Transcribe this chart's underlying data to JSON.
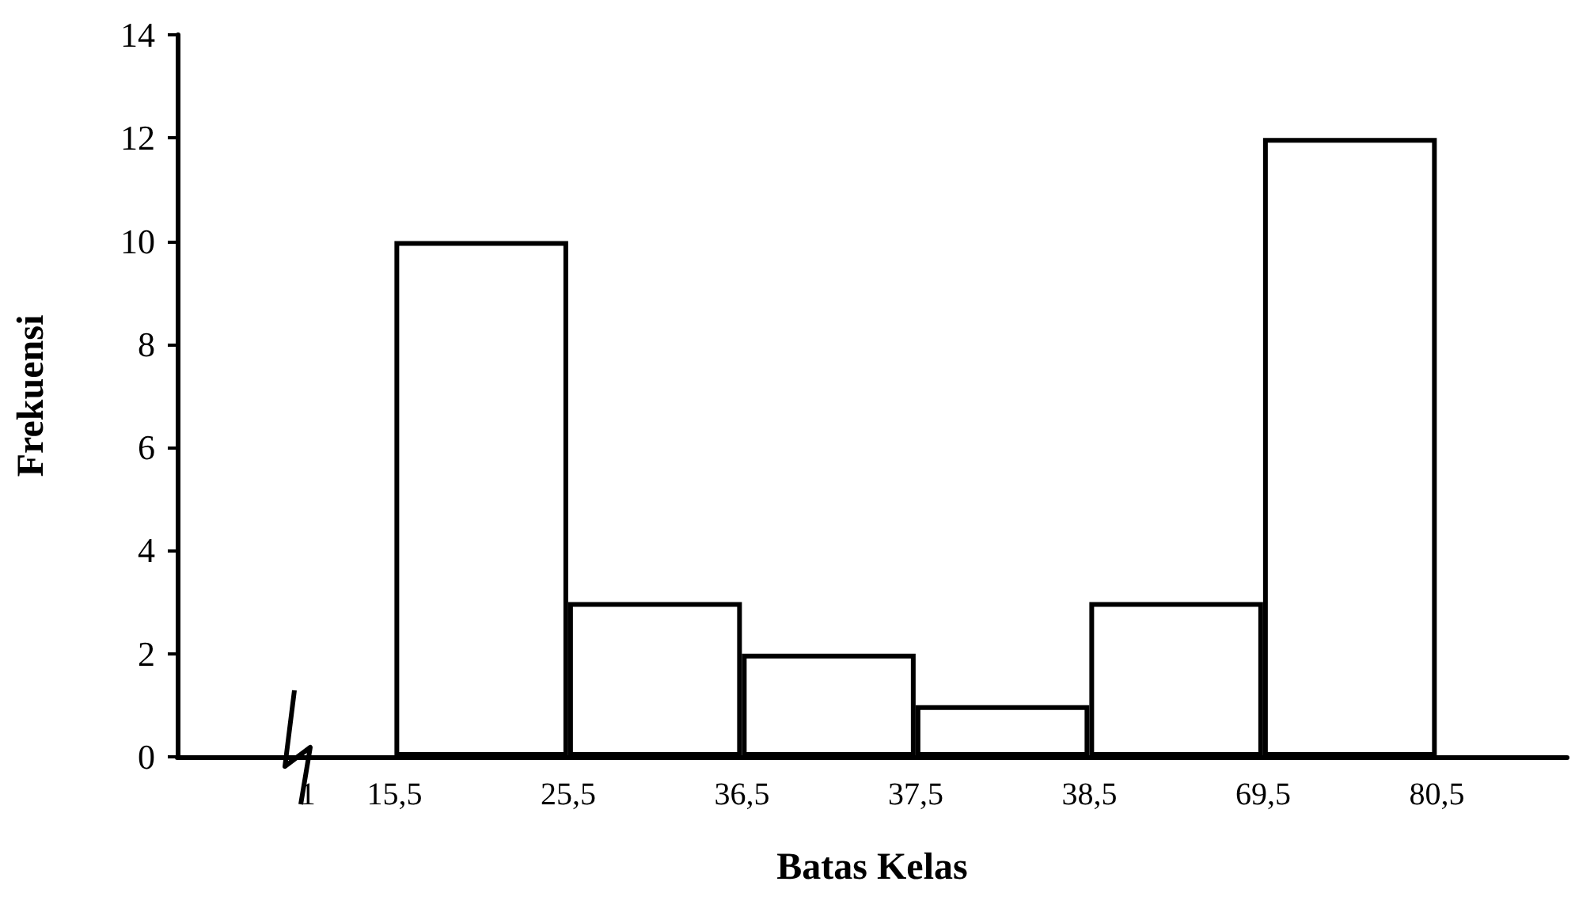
{
  "chart_data": {
    "type": "bar",
    "xlabel": "Batas Kelas",
    "ylabel": "Frekuensi",
    "categories": [
      null,
      "1",
      "15,5",
      null,
      "25,5",
      null,
      "36,5",
      null,
      "37,5",
      null,
      "38,5",
      null,
      "69,5",
      null,
      "80,5",
      null
    ],
    "values": [
      null,
      null,
      null,
      10,
      null,
      3,
      null,
      2,
      null,
      1,
      null,
      3,
      null,
      12,
      null,
      null
    ],
    "color": "#ffffff",
    "ylim": [
      0,
      14
    ],
    "yticks": [
      0,
      2,
      4,
      6,
      8,
      10,
      12,
      14
    ],
    "grid": false
  }
}
